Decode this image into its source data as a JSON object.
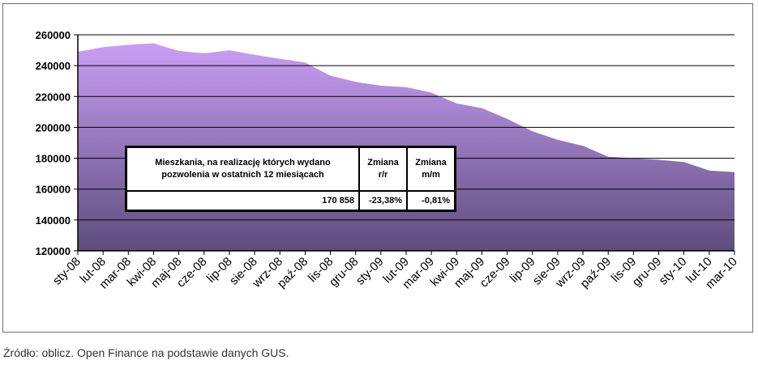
{
  "chart_data": {
    "type": "area",
    "title": "",
    "xlabel": "",
    "ylabel": "",
    "ylim": [
      120000,
      260000
    ],
    "yticks": [
      120000,
      140000,
      160000,
      180000,
      200000,
      220000,
      240000,
      260000
    ],
    "grid": true,
    "legend": "none",
    "categories": [
      "sty-08",
      "lut-08",
      "mar-08",
      "kwi-08",
      "maj-08",
      "cze-08",
      "lip-08",
      "sie-08",
      "wrz-08",
      "paź-08",
      "lis-08",
      "gru-08",
      "sty-09",
      "lut-09",
      "mar-09",
      "kwi-09",
      "maj-09",
      "cze-09",
      "lip-09",
      "sie-09",
      "wrz-09",
      "paź-09",
      "lis-09",
      "gru-09",
      "sty-10",
      "lut-10",
      "mar-10"
    ],
    "series": [
      {
        "values": [
          249000,
          252000,
          253500,
          254500,
          249500,
          248000,
          250000,
          247000,
          244500,
          242000,
          233500,
          229500,
          227000,
          226000,
          222500,
          215500,
          212500,
          205500,
          197500,
          192000,
          188000,
          181000,
          180000,
          179000,
          177500,
          172000,
          171000
        ]
      }
    ],
    "colors": {
      "area_top": "#c99ef5",
      "area_bottom": "#5d4d7c",
      "grid": "#000000"
    }
  },
  "table": {
    "header_description": "Mieszkania, na realizację których wydano pozwolenia w ostatnich 12 miesiącach",
    "header_yoy": "Zmiana r/r",
    "header_mom": "Zmiana m/m",
    "value": "170 858",
    "yoy": "-23,38%",
    "mom": "-0,81%"
  },
  "source": "Źródło: oblicz. Open Finance na podstawie danych GUS."
}
